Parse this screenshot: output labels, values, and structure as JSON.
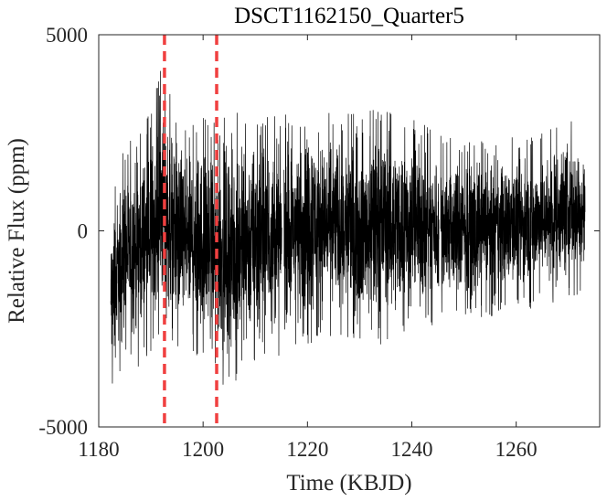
{
  "chart_data": {
    "type": "line",
    "title": "DSCT1162150_Quarter5",
    "xlabel": "Time (KBJD)",
    "ylabel": "Relative Flux (ppm)",
    "xlim": [
      1180,
      1276
    ],
    "ylim": [
      -5000,
      5000
    ],
    "xticks": [
      1180,
      1200,
      1220,
      1240,
      1260
    ],
    "xtick_labels": [
      "1180",
      "1200",
      "1220",
      "1240",
      "1260"
    ],
    "yticks": [
      -5000,
      0,
      5000
    ],
    "ytick_labels": [
      "-5000",
      "0",
      "5000"
    ],
    "grid": false,
    "legend": "none",
    "box": true,
    "series": [
      {
        "color": "#000000",
        "x_range": [
          1182.3,
          1273.2
        ],
        "approx_points": 4000,
        "gaps": [
          [
            1215.1,
            1215.5
          ],
          [
            1245.2,
            1245.5
          ]
        ],
        "envelope": {
          "x": [
            1182.3,
            1183,
            1185,
            1188,
            1190,
            1192,
            1195,
            1200,
            1203,
            1205,
            1210,
            1215,
            1220,
            1225,
            1230,
            1235,
            1240,
            1245,
            1250,
            1255,
            1260,
            1265,
            1270,
            1273.2
          ],
          "upper": [
            600,
            1300,
            2200,
            2800,
            3000,
            4200,
            3100,
            2900,
            2700,
            3100,
            3200,
            2900,
            3500,
            3100,
            3000,
            3200,
            3000,
            2500,
            2300,
            2300,
            2400,
            2500,
            2900,
            2700
          ],
          "lower": [
            -4500,
            -3900,
            -3300,
            -3500,
            -3200,
            -2700,
            -3300,
            -3500,
            -3800,
            -4100,
            -3600,
            -3200,
            -3000,
            -2700,
            -2900,
            -2900,
            -2600,
            -2400,
            -2300,
            -2200,
            -2100,
            -1900,
            -1800,
            -1700
          ]
        }
      }
    ],
    "vlines": [
      {
        "x": 1192.6,
        "color": "#f04040",
        "style": "dashed"
      },
      {
        "x": 1202.6,
        "color": "#f04040",
        "style": "dashed"
      }
    ]
  }
}
